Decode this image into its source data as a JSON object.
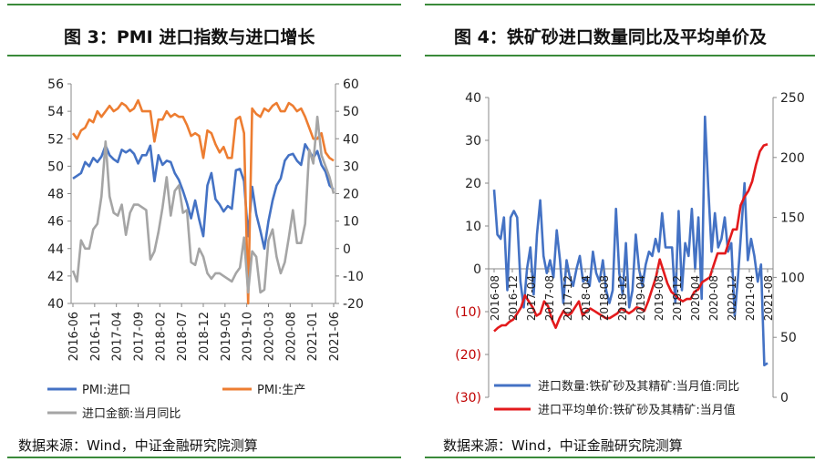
{
  "left": {
    "title": "图 3：PMI 进口指数与进口增长",
    "source": "数据来源：Wind，中证金融研究院测算",
    "chart_data": {
      "type": "line",
      "x_tick_labels": [
        "2016-06",
        "2016-11",
        "2017-04",
        "2017-09",
        "2018-02",
        "2018-07",
        "2018-12",
        "2019-05",
        "2019-10",
        "2020-03",
        "2020-08",
        "2021-01",
        "2021-06"
      ],
      "left_axis": {
        "ylim": [
          40,
          56
        ],
        "ticks": [
          "40",
          "42",
          "44",
          "46",
          "48",
          "50",
          "52",
          "54",
          "56"
        ]
      },
      "right_axis": {
        "ylim": [
          -20,
          60
        ],
        "ticks": [
          "-20",
          "-10",
          "0",
          "10",
          "20",
          "30",
          "40",
          "50",
          "60"
        ]
      },
      "series": [
        {
          "name": "PMI:进口",
          "axis": "left",
          "color": "#4472c4",
          "values": [
            49.1,
            49.3,
            49.5,
            50.3,
            50.0,
            50.6,
            50.3,
            50.7,
            51.5,
            50.8,
            50.5,
            50.3,
            51.2,
            51.0,
            51.2,
            50.9,
            50.2,
            50.8,
            50.8,
            51.5,
            48.9,
            50.8,
            50.1,
            50.4,
            50.3,
            49.5,
            49.0,
            48.2,
            47.3,
            46.2,
            47.5,
            46.1,
            44.9,
            48.6,
            49.5,
            47.6,
            47.2,
            46.7,
            47.1,
            46.9,
            49.7,
            49.8,
            48.9,
            44.9,
            48.5,
            46.5,
            45.3,
            44.0,
            46.0,
            47.5,
            48.6,
            49.1,
            50.4,
            50.8,
            50.9,
            50.4,
            50.1,
            51.6,
            51.1,
            50.6,
            51.1,
            50.1,
            49.6,
            48.6,
            48.3
          ]
        },
        {
          "name": "PMI:生产",
          "axis": "right",
          "color": "#ed7d31",
          "values": [
            42,
            40,
            43,
            44,
            47,
            46,
            50,
            48,
            50,
            52,
            50,
            51,
            53,
            52,
            50,
            51,
            54,
            50,
            50,
            50,
            39,
            47,
            47,
            50,
            48,
            49,
            48,
            48,
            45,
            41,
            42,
            41,
            33,
            43,
            42,
            38,
            35,
            37,
            33,
            33,
            47,
            48,
            42,
            -20,
            51,
            49,
            48,
            51,
            50,
            52,
            53,
            50,
            50,
            53,
            52,
            50,
            51,
            48,
            44,
            40,
            40,
            42,
            35,
            33,
            32
          ]
        },
        {
          "name": "进口金额:当月同比",
          "axis": "right",
          "color": "#a5a5a5",
          "values": [
            -8,
            -12,
            3,
            0,
            0,
            7,
            9,
            19,
            39,
            19,
            13,
            12,
            16,
            5,
            13,
            16,
            16,
            15,
            14,
            -4,
            -1,
            6,
            15,
            26,
            12,
            21,
            23,
            13,
            14,
            -5,
            -6,
            0,
            -3,
            -9,
            -11,
            -9,
            -9,
            -10,
            -11,
            -12,
            -9,
            -7,
            4,
            -16,
            -1,
            -3,
            -16,
            -15,
            3,
            7,
            -3,
            -9,
            -5,
            4,
            14,
            2,
            2,
            9,
            36,
            31,
            48,
            34,
            30,
            26,
            20
          ]
        }
      ]
    },
    "legend": {
      "pmi_import": "PMI:进口",
      "pmi_production": "PMI:生产",
      "import_value": "进口金额:当月同比"
    }
  },
  "right": {
    "title": "图 4：铁矿砂进口数量同比及平均单价及",
    "source": "数据来源：Wind，中证金融研究院测算",
    "chart_data": {
      "type": "line",
      "x_tick_labels": [
        "2016-08",
        "2016-12",
        "2017-04",
        "2017-08",
        "2017-12",
        "2018-04",
        "2018-08",
        "2018-12",
        "2019-04",
        "2019-08",
        "2019-12",
        "2020-04",
        "2020-08",
        "2020-12",
        "2021-04",
        "2021-08"
      ],
      "left_axis": {
        "ylim": [
          -30,
          40
        ],
        "ticks": [
          "(30)",
          "(20)",
          "(10)",
          "0",
          "10",
          "20",
          "30",
          "40"
        ],
        "negative_color": "#c00000"
      },
      "right_axis": {
        "ylim": [
          0,
          250
        ],
        "ticks": [
          "0",
          "50",
          "100",
          "150",
          "200",
          "250"
        ]
      },
      "series": [
        {
          "name": "进口数量:铁矿砂及其精矿:当月值:同比",
          "axis": "left",
          "color": "#4472c4",
          "values": [
            18.5,
            8,
            7,
            12,
            -5,
            12,
            13.5,
            12,
            -3,
            -9,
            0,
            5,
            -6,
            8,
            16,
            3,
            -1,
            2,
            -2,
            9,
            2,
            -8,
            2,
            -2,
            -4,
            0,
            3,
            -3,
            -2,
            -4,
            4,
            -1,
            -3,
            2,
            -5,
            -8,
            -5,
            14,
            -1,
            -6,
            6,
            -9,
            -5,
            8,
            0,
            -4,
            1,
            4,
            3,
            7,
            4,
            13,
            5,
            5,
            5,
            -8,
            13.5,
            -5,
            6,
            3,
            14,
            0,
            12,
            -7,
            35.5,
            19,
            4,
            13,
            5,
            7,
            12,
            4,
            6,
            -11,
            -2,
            9,
            20,
            2,
            7,
            3,
            -3,
            1,
            -22.5,
            -22
          ]
        },
        {
          "name": "进口平均单价:铁矿砂及其精矿:当月值",
          "axis": "right",
          "color": "#e31a1c",
          "values": [
            55,
            58,
            60,
            60,
            63,
            65,
            70,
            75,
            85,
            80,
            75,
            68,
            70,
            80,
            76,
            65,
            58,
            66,
            72,
            68,
            70,
            75,
            80,
            68,
            72,
            74,
            72,
            70,
            68,
            66,
            66,
            68,
            70,
            74,
            72,
            70,
            72,
            75,
            74,
            72,
            80,
            90,
            100,
            115,
            105,
            95,
            88,
            85,
            82,
            80,
            82,
            82,
            88,
            90,
            96,
            98,
            100,
            110,
            120,
            120,
            120,
            130,
            140,
            140,
            160,
            167,
            172,
            180,
            194,
            205,
            210,
            211
          ]
        }
      ]
    },
    "legend": {
      "quantity": "进口数量:铁矿砂及其精矿:当月值:同比",
      "price": "进口平均单价:铁矿砂及其精矿:当月值"
    }
  }
}
